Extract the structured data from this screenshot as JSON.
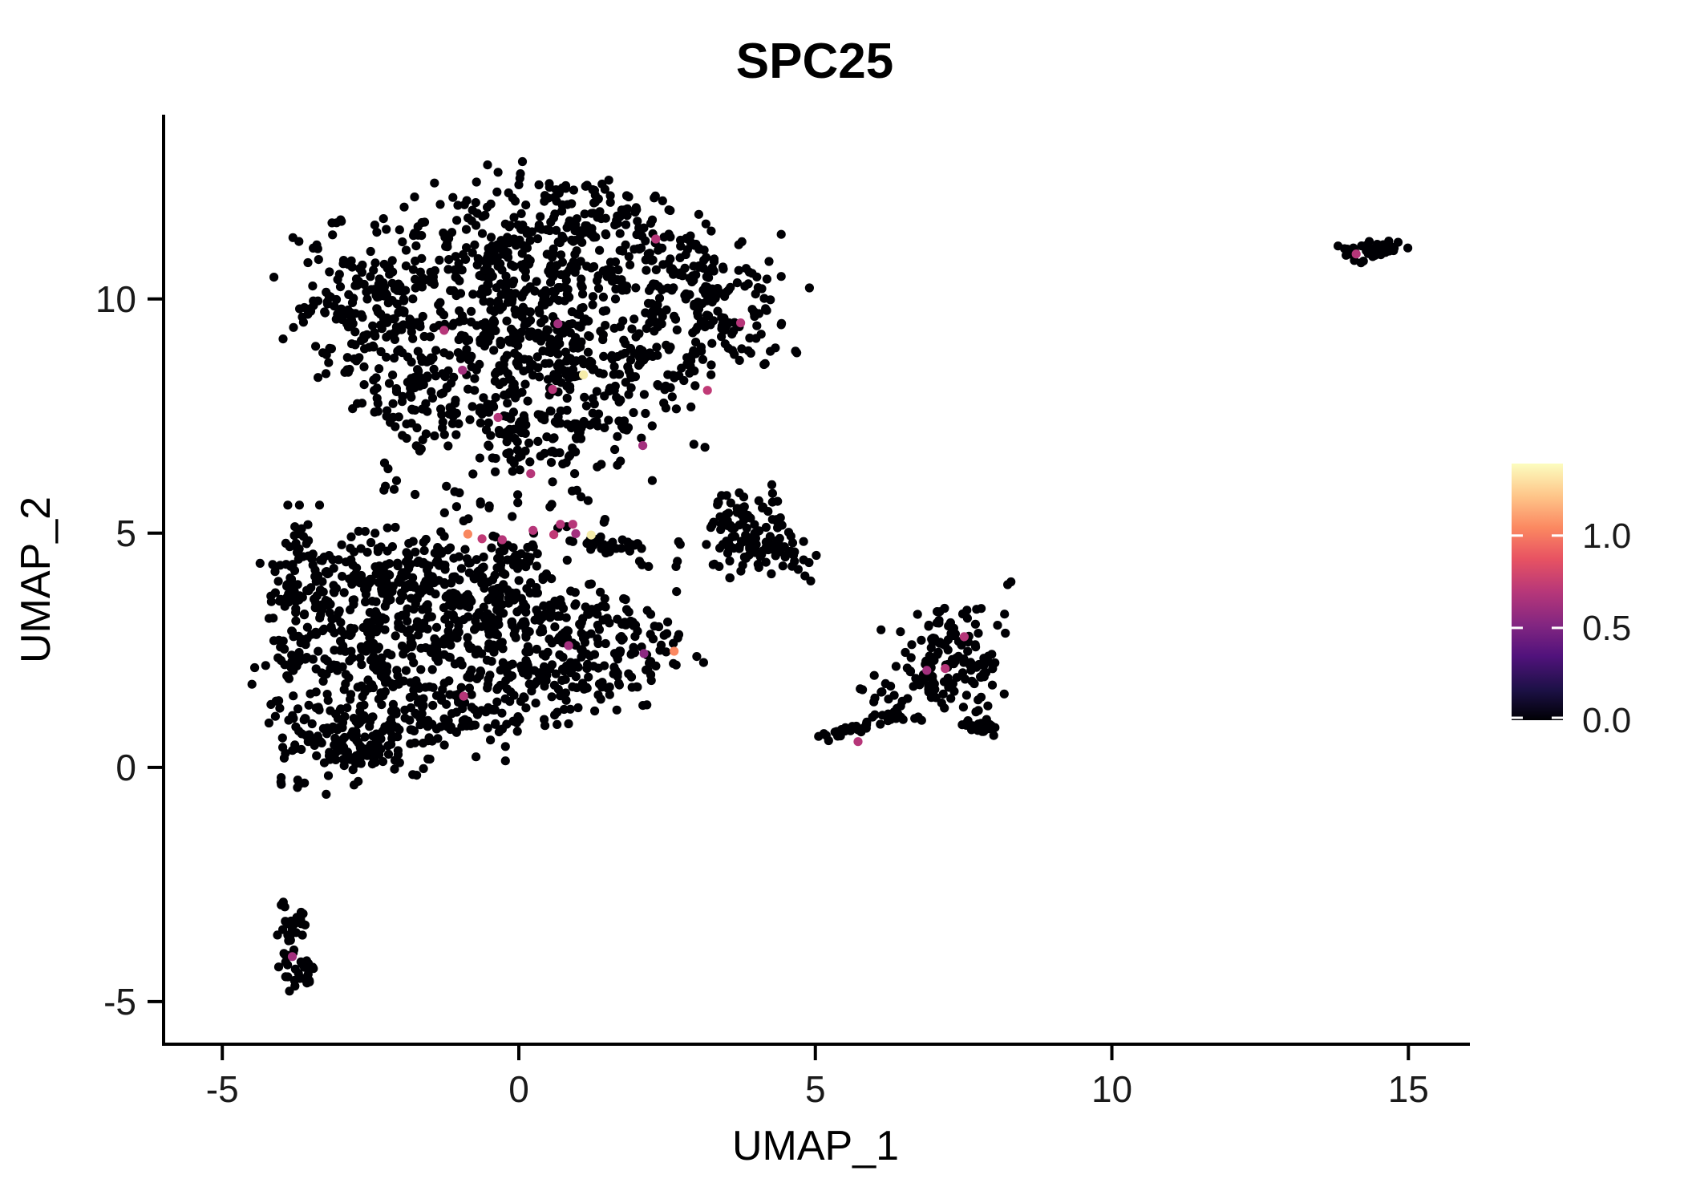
{
  "title": "SPC25",
  "axes": {
    "x_label": "UMAP_1",
    "y_label": "UMAP_2",
    "x_tick_labels": [
      "-5",
      "0",
      "5",
      "10",
      "15"
    ],
    "x_tick_values": [
      -5,
      0,
      5,
      10,
      15
    ],
    "y_tick_labels": [
      "-5",
      "0",
      "5",
      "10"
    ],
    "y_tick_values": [
      -5,
      0,
      5,
      10
    ]
  },
  "colorbar": {
    "tick_labels": [
      "1.0",
      "0.5",
      "0.0"
    ],
    "tick_values": [
      1.0,
      0.5,
      0.0
    ],
    "domain_min": 0.0,
    "domain_max": 1.39,
    "gradient_stops": [
      [
        0.0,
        "#000004"
      ],
      [
        0.12,
        "#1d1147"
      ],
      [
        0.25,
        "#51127c"
      ],
      [
        0.37,
        "#822681"
      ],
      [
        0.5,
        "#b73779"
      ],
      [
        0.63,
        "#e85362"
      ],
      [
        0.75,
        "#fb8861"
      ],
      [
        0.87,
        "#fec488"
      ],
      [
        1.0,
        "#fcfdbf"
      ]
    ],
    "tick_mark_color": "#ffffff"
  },
  "chart_data": {
    "type": "scatter",
    "title": "SPC25",
    "xlabel": "UMAP_1",
    "ylabel": "UMAP_2",
    "xlim": [
      -5.99,
      16.01
    ],
    "ylim": [
      -5.91,
      13.9
    ],
    "grid": false,
    "background": "#ffffff",
    "point_color_default": "#000004",
    "point_radius_px": 5.6,
    "legend": {
      "position": "right",
      "scale": "magma",
      "range": [
        0,
        1.39
      ],
      "ticks": [
        0,
        0.5,
        1.0
      ]
    },
    "seed": 1234567,
    "clusters": [
      {
        "name": "upper-main",
        "components": [
          {
            "type": "gauss",
            "x": 0.55,
            "y": 12.25,
            "sx": 0.75,
            "sy": 0.35,
            "n": 55
          },
          {
            "type": "gauss",
            "x": -0.7,
            "y": 11.1,
            "sx": 1.15,
            "sy": 0.55,
            "n": 115
          },
          {
            "type": "gauss",
            "x": -2.3,
            "y": 10.3,
            "sx": 0.75,
            "sy": 0.6,
            "n": 95
          },
          {
            "type": "gauss",
            "x": 0.7,
            "y": 10.7,
            "sx": 1.0,
            "sy": 0.6,
            "n": 130
          },
          {
            "type": "gauss",
            "x": 2.3,
            "y": 10.7,
            "sx": 0.85,
            "sy": 0.5,
            "n": 85
          },
          {
            "type": "gauss",
            "x": 3.4,
            "y": 9.7,
            "sx": 0.6,
            "sy": 0.5,
            "n": 70
          },
          {
            "type": "gauss",
            "x": -1.3,
            "y": 9.4,
            "sx": 1.0,
            "sy": 0.65,
            "n": 140
          },
          {
            "type": "gauss",
            "x": 0.9,
            "y": 9.4,
            "sx": 0.95,
            "sy": 0.65,
            "n": 135
          },
          {
            "type": "gauss",
            "x": 2.3,
            "y": 8.8,
            "sx": 0.75,
            "sy": 0.55,
            "n": 85
          },
          {
            "type": "gauss",
            "x": -0.3,
            "y": 8.3,
            "sx": 1.05,
            "sy": 0.55,
            "n": 120
          },
          {
            "type": "gauss",
            "x": 1.3,
            "y": 7.7,
            "sx": 0.85,
            "sy": 0.5,
            "n": 85
          },
          {
            "type": "gauss",
            "x": -0.1,
            "y": 7.1,
            "sx": 0.85,
            "sy": 0.4,
            "n": 65
          },
          {
            "type": "gauss",
            "x": -2.6,
            "y": 8.8,
            "sx": 0.45,
            "sy": 0.55,
            "n": 45
          },
          {
            "type": "gauss",
            "x": -3.1,
            "y": 9.9,
            "sx": 0.35,
            "sy": 0.45,
            "n": 30
          },
          {
            "type": "gauss",
            "x": 1.6,
            "y": 11.8,
            "sx": 0.5,
            "sy": 0.35,
            "n": 40
          },
          {
            "type": "gauss",
            "x": 3.0,
            "y": 10.4,
            "sx": 0.45,
            "sy": 0.4,
            "n": 40
          },
          {
            "type": "gauss",
            "x": -1.8,
            "y": 7.6,
            "sx": 0.5,
            "sy": 0.4,
            "n": 40
          }
        ]
      },
      {
        "name": "bridge-sparse",
        "components": [
          {
            "type": "gauss",
            "x": 0.0,
            "y": 6.3,
            "sx": 0.9,
            "sy": 0.35,
            "n": 28
          },
          {
            "type": "gauss",
            "x": -0.1,
            "y": 5.6,
            "sx": 1.0,
            "sy": 0.3,
            "n": 20
          },
          {
            "type": "line",
            "x1": 1.1,
            "y1": 4.78,
            "x2": 2.05,
            "y2": 4.72,
            "jitter": 0.07,
            "n": 38
          },
          {
            "type": "gauss",
            "x": 0.45,
            "y": 4.9,
            "sx": 0.35,
            "sy": 0.15,
            "n": 10
          },
          {
            "type": "gauss",
            "x": 2.4,
            "y": 4.55,
            "sx": 0.5,
            "sy": 0.25,
            "n": 8
          }
        ]
      },
      {
        "name": "lower-left",
        "components": [
          {
            "type": "gauss",
            "x": -2.7,
            "y": 3.9,
            "sx": 0.75,
            "sy": 0.65,
            "n": 150
          },
          {
            "type": "gauss",
            "x": -1.3,
            "y": 4.0,
            "sx": 0.9,
            "sy": 0.55,
            "n": 150
          },
          {
            "type": "gauss",
            "x": -3.0,
            "y": 2.3,
            "sx": 0.6,
            "sy": 0.85,
            "n": 125
          },
          {
            "type": "gauss",
            "x": -1.6,
            "y": 2.4,
            "sx": 0.85,
            "sy": 0.75,
            "n": 170
          },
          {
            "type": "gauss",
            "x": -0.2,
            "y": 3.3,
            "sx": 0.8,
            "sy": 0.65,
            "n": 120
          },
          {
            "type": "gauss",
            "x": 0.1,
            "y": 2.0,
            "sx": 0.85,
            "sy": 0.55,
            "n": 110
          },
          {
            "type": "gauss",
            "x": 1.2,
            "y": 3.0,
            "sx": 0.75,
            "sy": 0.45,
            "n": 80
          },
          {
            "type": "gauss",
            "x": 2.0,
            "y": 2.6,
            "sx": 0.4,
            "sy": 0.3,
            "n": 35
          },
          {
            "type": "gauss",
            "x": -3.3,
            "y": 0.8,
            "sx": 0.45,
            "sy": 0.55,
            "n": 70
          },
          {
            "type": "gauss",
            "x": -2.1,
            "y": 0.7,
            "sx": 0.75,
            "sy": 0.4,
            "n": 95
          },
          {
            "type": "gauss",
            "x": -2.7,
            "y": 0.3,
            "sx": 0.35,
            "sy": 0.2,
            "n": 20
          },
          {
            "type": "gauss",
            "x": -0.7,
            "y": 1.1,
            "sx": 0.65,
            "sy": 0.35,
            "n": 60
          },
          {
            "type": "gauss",
            "x": 0.9,
            "y": 1.7,
            "sx": 0.55,
            "sy": 0.28,
            "n": 35
          },
          {
            "type": "gauss",
            "x": -3.95,
            "y": 3.1,
            "sx": 0.22,
            "sy": 0.7,
            "n": 45
          },
          {
            "type": "gauss",
            "x": -3.7,
            "y": 4.6,
            "sx": 0.3,
            "sy": 0.4,
            "n": 30
          }
        ]
      },
      {
        "name": "mid-compact",
        "components": [
          {
            "type": "gauss",
            "x": 3.95,
            "y": 5.3,
            "sx": 0.33,
            "sy": 0.4,
            "n": 55
          },
          {
            "type": "gauss",
            "x": 4.3,
            "y": 4.75,
            "sx": 0.3,
            "sy": 0.3,
            "n": 45
          },
          {
            "type": "gauss",
            "x": 3.55,
            "y": 4.95,
            "sx": 0.22,
            "sy": 0.28,
            "n": 22
          },
          {
            "type": "gauss",
            "x": 4.6,
            "y": 4.4,
            "sx": 0.15,
            "sy": 0.15,
            "n": 8
          },
          {
            "type": "gauss",
            "x": 3.45,
            "y": 4.35,
            "sx": 0.18,
            "sy": 0.15,
            "n": 6
          }
        ]
      },
      {
        "name": "right-group",
        "components": [
          {
            "type": "gauss",
            "x": 7.3,
            "y": 2.65,
            "sx": 0.5,
            "sy": 0.5,
            "n": 65
          },
          {
            "type": "gauss",
            "x": 6.85,
            "y": 1.95,
            "sx": 0.45,
            "sy": 0.4,
            "n": 50
          },
          {
            "type": "gauss",
            "x": 7.6,
            "y": 1.75,
            "sx": 0.33,
            "sy": 0.38,
            "n": 32
          },
          {
            "type": "line",
            "x1": 7.5,
            "y1": 0.95,
            "x2": 8.05,
            "y2": 0.8,
            "jitter": 0.07,
            "n": 26
          },
          {
            "type": "gauss",
            "x": 6.25,
            "y": 1.25,
            "sx": 0.3,
            "sy": 0.28,
            "n": 18
          },
          {
            "type": "line",
            "x1": 5.05,
            "y1": 0.6,
            "x2": 6.1,
            "y2": 1.05,
            "jitter": 0.08,
            "n": 24
          }
        ]
      },
      {
        "name": "bottom-left-small",
        "components": [
          {
            "type": "gauss",
            "x": -3.72,
            "y": -3.2,
            "sx": 0.12,
            "sy": 0.22,
            "n": 16
          },
          {
            "type": "gauss",
            "x": -3.82,
            "y": -3.8,
            "sx": 0.1,
            "sy": 0.28,
            "n": 18
          },
          {
            "type": "gauss",
            "x": -3.65,
            "y": -4.35,
            "sx": 0.16,
            "sy": 0.22,
            "n": 24
          }
        ]
      },
      {
        "name": "far-right-top",
        "components": [
          {
            "type": "gauss",
            "x": 14.5,
            "y": 11.05,
            "sx": 0.25,
            "sy": 0.1,
            "n": 40
          },
          {
            "type": "gauss",
            "x": 14.05,
            "y": 10.9,
            "sx": 0.12,
            "sy": 0.1,
            "n": 10
          }
        ]
      }
    ],
    "highlighted_points": [
      {
        "x": 2.31,
        "y": 11.28,
        "color": "#b63679"
      },
      {
        "x": 0.66,
        "y": 9.47,
        "color": "#a3307e"
      },
      {
        "x": -1.26,
        "y": 9.33,
        "color": "#b63679"
      },
      {
        "x": 3.74,
        "y": 9.49,
        "color": "#b63679"
      },
      {
        "x": -0.95,
        "y": 8.48,
        "color": "#a3307e"
      },
      {
        "x": 1.09,
        "y": 8.38,
        "color": "#f6edaa"
      },
      {
        "x": 0.57,
        "y": 8.07,
        "color": "#b63679"
      },
      {
        "x": 3.18,
        "y": 8.05,
        "color": "#c03a76"
      },
      {
        "x": -0.35,
        "y": 7.47,
        "color": "#b63679"
      },
      {
        "x": 2.09,
        "y": 6.87,
        "color": "#a3307e"
      },
      {
        "x": 0.2,
        "y": 6.27,
        "color": "#b63679"
      },
      {
        "x": -0.86,
        "y": 4.98,
        "color": "#f8875f"
      },
      {
        "x": -0.62,
        "y": 4.88,
        "color": "#c03a76"
      },
      {
        "x": -0.28,
        "y": 4.86,
        "color": "#b63679"
      },
      {
        "x": 0.24,
        "y": 5.06,
        "color": "#b63679"
      },
      {
        "x": 0.59,
        "y": 4.97,
        "color": "#c03a76"
      },
      {
        "x": 0.7,
        "y": 5.19,
        "color": "#b63679"
      },
      {
        "x": 0.91,
        "y": 5.19,
        "color": "#b63679"
      },
      {
        "x": 0.96,
        "y": 4.99,
        "color": "#a3307e"
      },
      {
        "x": 1.22,
        "y": 4.96,
        "color": "#f6edaa"
      },
      {
        "x": 0.84,
        "y": 2.6,
        "color": "#a3307e"
      },
      {
        "x": 2.11,
        "y": 2.43,
        "color": "#8c2981"
      },
      {
        "x": 2.62,
        "y": 2.48,
        "color": "#fb8861"
      },
      {
        "x": -0.93,
        "y": 1.52,
        "color": "#b63679"
      },
      {
        "x": 7.51,
        "y": 2.79,
        "color": "#b63679"
      },
      {
        "x": 6.88,
        "y": 2.07,
        "color": "#a3307e"
      },
      {
        "x": 7.19,
        "y": 2.11,
        "color": "#b63679"
      },
      {
        "x": 5.72,
        "y": 0.55,
        "color": "#b63679"
      },
      {
        "x": -3.82,
        "y": -4.04,
        "color": "#a3307e"
      },
      {
        "x": 14.12,
        "y": 10.96,
        "color": "#b63679"
      }
    ]
  }
}
